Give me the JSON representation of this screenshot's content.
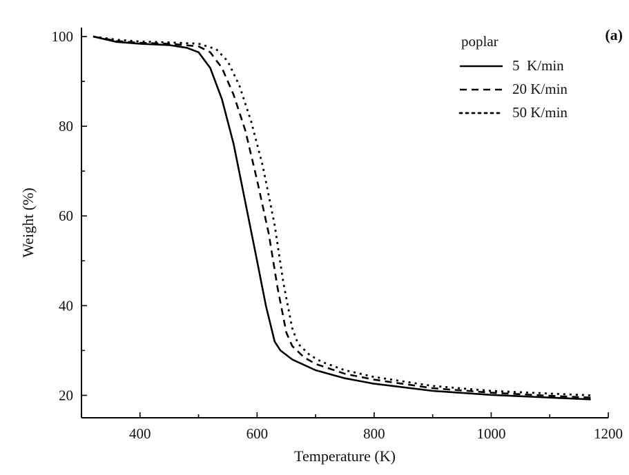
{
  "chart_data": {
    "type": "line",
    "panel_label": "(a)",
    "xlabel": "Temperature (K)",
    "ylabel": "Weight (%)",
    "xlim": [
      300,
      1200
    ],
    "ylim": [
      15,
      102
    ],
    "xticks": [
      400,
      600,
      800,
      1000,
      1200
    ],
    "yticks": [
      20,
      40,
      60,
      80,
      100
    ],
    "grid": false,
    "legend": {
      "title": "poplar",
      "position": "top-right"
    },
    "series": [
      {
        "name": "5  K/min",
        "style": "solid",
        "color": "#000000",
        "x": [
          320,
          360,
          400,
          450,
          480,
          500,
          520,
          540,
          560,
          580,
          600,
          615,
          630,
          640,
          660,
          700,
          750,
          800,
          900,
          1000,
          1100,
          1170
        ],
        "y": [
          100,
          98.8,
          98.4,
          98.1,
          97.5,
          96.5,
          93,
          86,
          76,
          63,
          50,
          40,
          32,
          30,
          28,
          25.6,
          23.8,
          22.6,
          21,
          20.1,
          19.5,
          19.1
        ]
      },
      {
        "name": "20 K/min",
        "style": "dashed",
        "color": "#000000",
        "x": [
          320,
          360,
          400,
          450,
          500,
          520,
          540,
          560,
          580,
          600,
          620,
          635,
          650,
          660,
          680,
          700,
          750,
          800,
          900,
          1000,
          1100,
          1170
        ],
        "y": [
          100,
          99,
          98.6,
          98.4,
          97.8,
          96.5,
          93,
          87,
          79,
          68,
          56,
          44,
          34,
          31,
          28.5,
          27,
          24.8,
          23.5,
          21.6,
          20.6,
          19.9,
          19.5
        ]
      },
      {
        "name": "50 K/min",
        "style": "dotted",
        "color": "#000000",
        "x": [
          320,
          360,
          400,
          450,
          500,
          530,
          550,
          570,
          590,
          610,
          630,
          645,
          660,
          670,
          690,
          710,
          750,
          800,
          900,
          1000,
          1100,
          1170
        ],
        "y": [
          100,
          99.3,
          98.9,
          98.7,
          98.4,
          97.2,
          94.5,
          89,
          81,
          71,
          58,
          45,
          35,
          31.5,
          29,
          27.5,
          25.6,
          24.1,
          22.1,
          21,
          20.4,
          20
        ]
      }
    ]
  }
}
